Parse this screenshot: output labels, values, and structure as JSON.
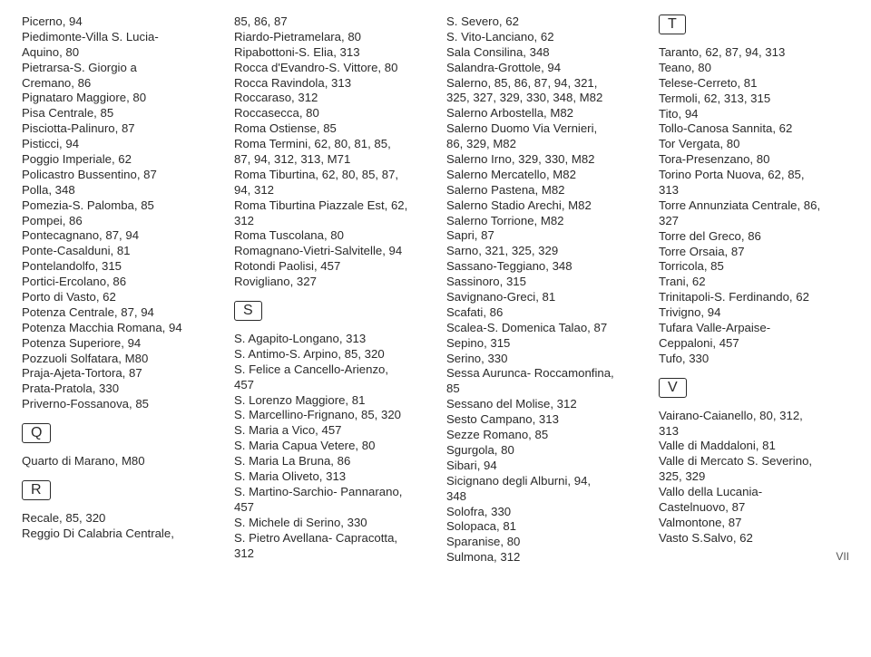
{
  "col1": {
    "preQ": [
      "Picerno, 94",
      "Piedimonte-Villa S. Lucia-\nAquino, 80",
      "Pietrarsa-S. Giorgio a\nCremano, 86",
      "Pignataro Maggiore, 80",
      "Pisa Centrale, 85",
      "Pisciotta-Palinuro, 87",
      "Pisticci, 94",
      "Poggio Imperiale, 62",
      "Policastro Bussentino, 87",
      "Polla, 348",
      "Pomezia-S. Palomba, 85",
      "Pompei, 86",
      "Pontecagnano, 87, 94",
      "Ponte-Casalduni, 81",
      "Pontelandolfo, 315",
      "Portici-Ercolano, 86",
      "Porto di Vasto, 62",
      "Potenza Centrale, 87, 94",
      "Potenza Macchia Romana, 94",
      "Potenza Superiore, 94",
      "Pozzuoli Solfatara, M80",
      "Praja-Ajeta-Tortora, 87",
      "Prata-Pratola, 330",
      "Priverno-Fossanova, 85"
    ],
    "Q": "Q",
    "afterQ": [
      "Quarto di Marano, M80"
    ],
    "R": "R",
    "afterR": [
      "Recale, 85, 320",
      "Reggio Di Calabria Centrale,"
    ]
  },
  "col2": {
    "preS": [
      "85, 86, 87",
      "Riardo-Pietramelara, 80",
      "Ripabottoni-S. Elia, 313",
      "Rocca d'Evandro-S. Vittore, 80",
      "Rocca Ravindola, 313",
      "Roccaraso, 312",
      "Roccasecca, 80",
      "Roma Ostiense, 85",
      "Roma Termini, 62, 80, 81, 85,\n87, 94, 312, 313, M71",
      "Roma Tiburtina, 62, 80, 85, 87,\n94, 312",
      "Roma Tiburtina Piazzale Est, 62,\n312",
      "Roma Tuscolana, 80",
      "Romagnano-Vietri-Salvitelle, 94",
      "Rotondi Paolisi, 457",
      "Rovigliano, 327"
    ],
    "S": "S",
    "afterS": [
      "S. Agapito-Longano, 313",
      "S. Antimo-S. Arpino, 85, 320",
      "S. Felice a Cancello-Arienzo,\n457",
      "S. Lorenzo Maggiore, 81",
      "S. Marcellino-Frignano, 85, 320",
      "S. Maria a Vico, 457",
      "S. Maria Capua Vetere, 80",
      "S. Maria La Bruna, 86",
      "S. Maria Oliveto, 313",
      "S. Martino-Sarchio- Pannarano,\n457",
      "S. Michele di Serino, 330",
      "S. Pietro Avellana- Capracotta,\n312"
    ]
  },
  "col3": [
    "S. Severo, 62",
    "S. Vito-Lanciano, 62",
    "Sala Consilina, 348",
    "Salandra-Grottole, 94",
    "Salerno, 85, 86, 87, 94, 321,\n325, 327, 329, 330, 348, M82",
    "Salerno Arbostella, M82",
    "Salerno Duomo Via Vernieri,\n86, 329, M82",
    "Salerno Irno, 329, 330, M82",
    "Salerno Mercatello, M82",
    "Salerno Pastena, M82",
    "Salerno Stadio Arechi, M82",
    "Salerno Torrione, M82",
    "Sapri, 87",
    "Sarno, 321, 325, 329",
    "Sassano-Teggiano, 348",
    "Sassinoro, 315",
    "Savignano-Greci, 81",
    "Scafati, 86",
    "Scalea-S. Domenica Talao, 87",
    "Sepino, 315",
    "Serino, 330",
    "Sessa Aurunca- Roccamonfina,\n85",
    "Sessano del Molise, 312",
    "Sesto Campano, 313",
    "Sezze Romano, 85",
    "Sgurgola, 80",
    "Sibari, 94",
    "Sicignano degli Alburni, 94,\n348",
    "Solofra, 330",
    "Solopaca, 81",
    "Sparanise, 80",
    "Sulmona, 312"
  ],
  "col4": {
    "T": "T",
    "afterT": [
      "Taranto, 62, 87, 94, 313",
      "Teano, 80",
      "Telese-Cerreto, 81",
      "Termoli, 62, 313, 315",
      "Tito, 94",
      "Tollo-Canosa Sannita, 62",
      "Tor Vergata, 80",
      "Tora-Presenzano, 80",
      "Torino Porta Nuova, 62, 85,\n313",
      "Torre Annunziata Centrale, 86,\n327",
      "Torre del Greco, 86",
      "Torre Orsaia, 87",
      "Torricola, 85",
      "Trani, 62",
      "Trinitapoli-S. Ferdinando, 62",
      "Trivigno, 94",
      "Tufara Valle-Arpaise-\nCeppaloni, 457",
      "Tufo, 330"
    ],
    "V": "V",
    "afterV": [
      "Vairano-Caianello, 80, 312,\n313",
      "Valle di Maddaloni, 81",
      "Valle di Mercato S. Severino,\n325, 329",
      "Vallo della Lucania-\nCastelnuovo, 87",
      "Valmontone, 87",
      "Vasto S.Salvo, 62"
    ]
  },
  "pageNumber": "VII"
}
